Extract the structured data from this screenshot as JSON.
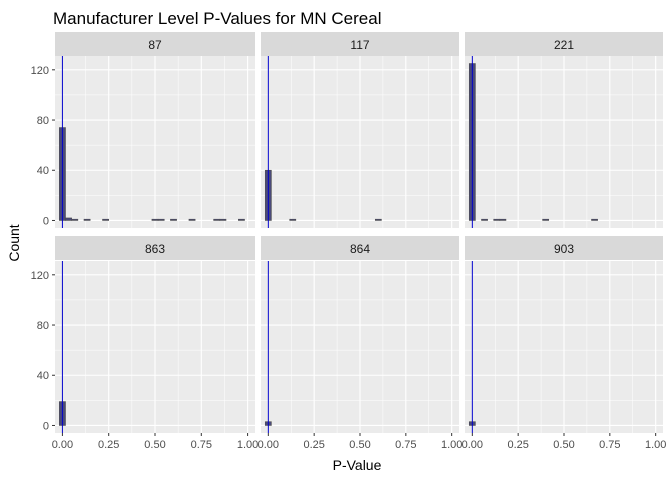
{
  "chart_data": {
    "type": "bar",
    "subtype": "faceted-histogram",
    "title": "Manufacturer Level P-Values for MN Cereal",
    "xlabel": "P-Value",
    "ylabel": "Count",
    "xlim": [
      -0.04,
      1.04
    ],
    "ylim": [
      -6,
      131
    ],
    "xticks": [
      0,
      0.25,
      0.5,
      0.75,
      1
    ],
    "xtick_labels": [
      "0.00",
      "0.25",
      "0.50",
      "0.75",
      "1.00"
    ],
    "yticks": [
      0,
      40,
      80,
      120
    ],
    "ytick_labels": [
      "0",
      "40",
      "80",
      "120"
    ],
    "bin_width": 0.0333,
    "vline_x": 0,
    "grid": true,
    "colors": {
      "panel_bg": "#ebebeb",
      "strip_bg": "#d9d9d9",
      "grid": "#ffffff",
      "bar_fill": "#4a4a7a",
      "bar_edge": "#4d4d4d",
      "vline": "#0000cc"
    },
    "facets": [
      {
        "label": "87",
        "bins": [
          [
            0,
            74
          ],
          [
            0.0333,
            2
          ],
          [
            0.0667,
            1
          ],
          [
            0.1333,
            1
          ],
          [
            0.2333,
            1
          ],
          [
            0.5,
            1
          ],
          [
            0.5333,
            1
          ],
          [
            0.6,
            1
          ],
          [
            0.7,
            1
          ],
          [
            0.8333,
            1
          ],
          [
            0.8667,
            1
          ],
          [
            0.9667,
            1
          ]
        ]
      },
      {
        "label": "117",
        "bins": [
          [
            0,
            40
          ],
          [
            0.1333,
            1
          ],
          [
            0.6,
            1
          ]
        ]
      },
      {
        "label": "221",
        "bins": [
          [
            0,
            125
          ],
          [
            0.0667,
            1
          ],
          [
            0.1333,
            1
          ],
          [
            0.1667,
            1
          ],
          [
            0.4,
            1
          ],
          [
            0.6667,
            1
          ]
        ]
      },
      {
        "label": "863",
        "bins": [
          [
            0,
            19
          ]
        ]
      },
      {
        "label": "864",
        "bins": [
          [
            0,
            3
          ]
        ]
      },
      {
        "label": "903",
        "bins": [
          [
            0,
            3
          ]
        ]
      }
    ]
  }
}
